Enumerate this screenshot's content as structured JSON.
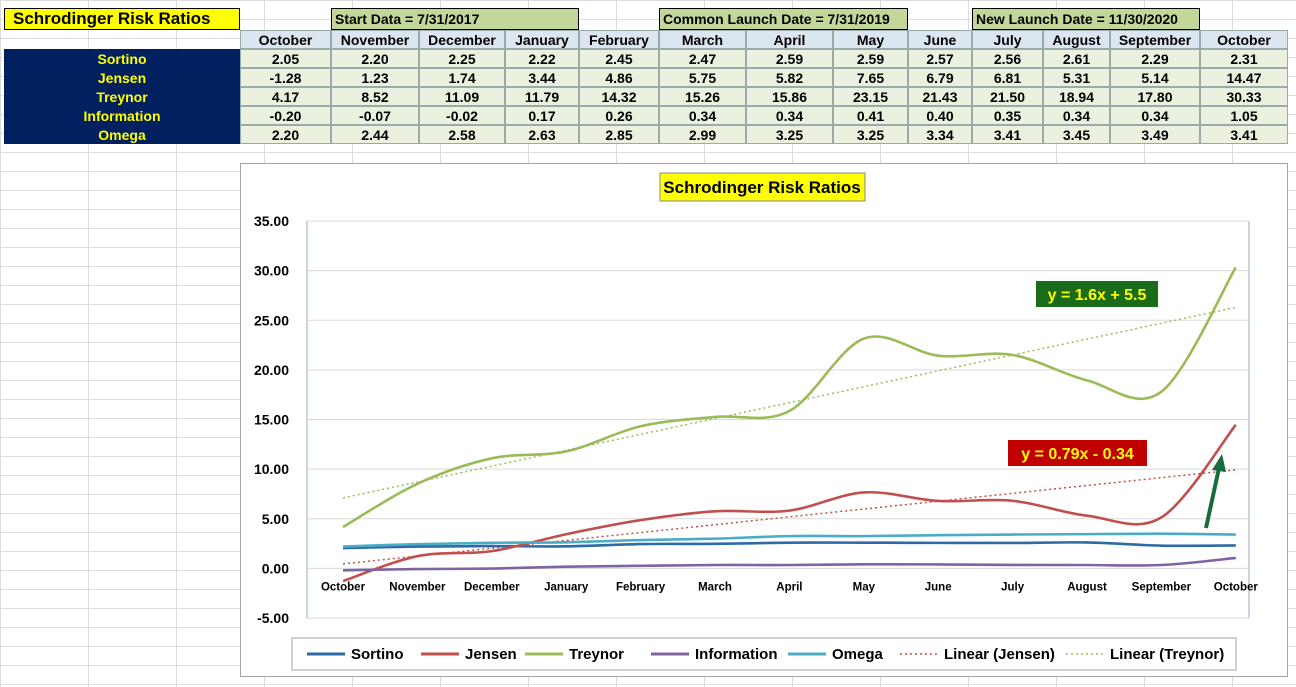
{
  "sheet": {
    "title": "Schrodinger Risk Ratios",
    "launches": [
      {
        "label": "Start Data = 7/31/2017"
      },
      {
        "label": "Common Launch Date = 7/31/2019"
      },
      {
        "label": "New Launch Date = 11/30/2020"
      }
    ],
    "months": [
      "October",
      "November",
      "December",
      "January",
      "February",
      "March",
      "April",
      "May",
      "June",
      "July",
      "August",
      "September",
      "October"
    ],
    "rows": [
      {
        "label": "Sortino",
        "values": [
          "2.05",
          "2.20",
          "2.25",
          "2.22",
          "2.45",
          "2.47",
          "2.59",
          "2.59",
          "2.57",
          "2.56",
          "2.61",
          "2.29",
          "2.31"
        ]
      },
      {
        "label": "Jensen",
        "values": [
          "-1.28",
          "1.23",
          "1.74",
          "3.44",
          "4.86",
          "5.75",
          "5.82",
          "7.65",
          "6.79",
          "6.81",
          "5.31",
          "5.14",
          "14.47"
        ]
      },
      {
        "label": "Treynor",
        "values": [
          "4.17",
          "8.52",
          "11.09",
          "11.79",
          "14.32",
          "15.26",
          "15.86",
          "23.15",
          "21.43",
          "21.50",
          "18.94",
          "17.80",
          "30.33"
        ]
      },
      {
        "label": "Information",
        "values": [
          "-0.20",
          "-0.07",
          "-0.02",
          "0.17",
          "0.26",
          "0.34",
          "0.34",
          "0.41",
          "0.40",
          "0.35",
          "0.34",
          "0.34",
          "1.05"
        ]
      },
      {
        "label": "Omega",
        "values": [
          "2.20",
          "2.44",
          "2.58",
          "2.63",
          "2.85",
          "2.99",
          "3.25",
          "3.25",
          "3.34",
          "3.41",
          "3.45",
          "3.49",
          "3.41"
        ]
      }
    ]
  },
  "chart_data": {
    "type": "line",
    "title": "Schrodinger Risk Ratios",
    "categories": [
      "October",
      "November",
      "December",
      "January",
      "February",
      "March",
      "April",
      "May",
      "June",
      "July",
      "August",
      "September",
      "October"
    ],
    "ylim": [
      -5,
      35
    ],
    "yticks": [
      "-5.00",
      "0.00",
      "5.00",
      "10.00",
      "15.00",
      "20.00",
      "25.00",
      "30.00",
      "35.00"
    ],
    "grid": true,
    "legend_position": "bottom",
    "series": [
      {
        "name": "Sortino",
        "color": "#2e6aa8",
        "values": [
          2.05,
          2.2,
          2.25,
          2.22,
          2.45,
          2.47,
          2.59,
          2.59,
          2.57,
          2.56,
          2.61,
          2.29,
          2.31
        ]
      },
      {
        "name": "Jensen",
        "color": "#c0504d",
        "values": [
          -1.28,
          1.23,
          1.74,
          3.44,
          4.86,
          5.75,
          5.82,
          7.65,
          6.79,
          6.81,
          5.31,
          5.14,
          14.47
        ]
      },
      {
        "name": "Treynor",
        "color": "#9bbb59",
        "values": [
          4.17,
          8.52,
          11.09,
          11.79,
          14.32,
          15.26,
          15.86,
          23.15,
          21.43,
          21.5,
          18.94,
          17.8,
          30.33
        ]
      },
      {
        "name": "Information",
        "color": "#8064a2",
        "values": [
          -0.2,
          -0.07,
          -0.02,
          0.17,
          0.26,
          0.34,
          0.34,
          0.41,
          0.4,
          0.35,
          0.34,
          0.34,
          1.05
        ]
      },
      {
        "name": "Omega",
        "color": "#4bacc6",
        "values": [
          2.2,
          2.44,
          2.58,
          2.63,
          2.85,
          2.99,
          3.25,
          3.25,
          3.34,
          3.41,
          3.45,
          3.49,
          3.41
        ]
      }
    ],
    "trendlines": [
      {
        "name": "Linear (Jensen)",
        "color": "#c0504d",
        "slope": 0.79,
        "intercept": -0.34
      },
      {
        "name": "Linear (Treynor)",
        "color": "#9bbb59",
        "slope": 1.6,
        "intercept": 5.5
      }
    ],
    "annotations": [
      {
        "text": "y = 1.6x + 5.5",
        "bg": "#1a6b1a",
        "color": "#ffff00"
      },
      {
        "text": "y = 0.79x - 0.34",
        "bg": "#c00000",
        "color": "#ffff00"
      }
    ],
    "arrow_color": "#1a6b3c"
  }
}
